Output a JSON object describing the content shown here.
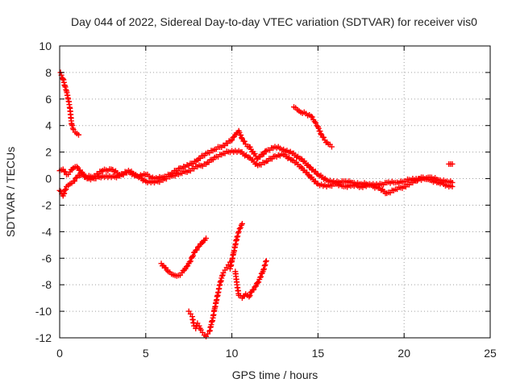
{
  "chart_data": {
    "type": "scatter",
    "title": "Day 044 of 2022, Sidereal Day-to-day VTEC variation (SDTVAR) for receiver vis0",
    "xlabel": "GPS time / hours",
    "ylabel": "SDTVAR / TECUs",
    "xlim": [
      0,
      25
    ],
    "ylim": [
      -12,
      10
    ],
    "xticks": [
      "0",
      "5",
      "10",
      "15",
      "20",
      "25"
    ],
    "yticks": [
      "10",
      "8",
      "6",
      "4",
      "2",
      "0",
      "-2",
      "-4",
      "-6",
      "-8",
      "-10",
      "-12"
    ],
    "grid": true,
    "marker": "+",
    "color": "#ff0000",
    "series": [
      {
        "x": [
          0.0,
          0.2,
          0.4,
          0.6,
          0.8,
          1.0,
          1.5,
          2.0,
          2.5,
          3.0,
          3.5,
          4.0,
          4.5,
          5.0,
          5.5,
          6.0,
          6.5,
          7.0,
          7.5,
          8.0,
          8.5,
          9.0,
          9.5,
          10.0,
          10.2,
          10.4,
          10.6,
          10.8,
          11.0,
          11.5,
          12.0,
          12.5,
          13.0,
          13.5,
          14.0,
          14.5,
          15.0,
          15.5,
          16.0,
          16.5,
          17.0,
          17.5,
          18.0,
          18.5,
          19.0,
          19.5,
          20.0,
          20.5,
          21.0,
          21.5,
          22.0,
          22.5,
          22.8
        ],
        "y": [
          0.6,
          0.7,
          0.3,
          0.5,
          0.8,
          0.9,
          0.1,
          0.2,
          0.6,
          0.7,
          0.3,
          0.6,
          0.2,
          0.3,
          0.0,
          0.1,
          0.4,
          0.8,
          1.0,
          1.4,
          1.9,
          2.2,
          2.5,
          2.9,
          3.3,
          3.6,
          3.0,
          2.6,
          2.4,
          1.5,
          2.1,
          2.4,
          2.2,
          1.9,
          1.5,
          0.9,
          0.3,
          -0.1,
          -0.3,
          -0.2,
          -0.3,
          -0.4,
          -0.4,
          -0.5,
          -0.3,
          -0.3,
          -0.2,
          0.0,
          -0.1,
          0.1,
          -0.1,
          -0.2,
          -0.3
        ]
      },
      {
        "x": [
          0.0,
          0.2,
          0.4,
          0.6,
          0.8,
          1.0,
          1.3,
          1.6,
          2.0,
          2.5,
          3.0,
          3.5,
          4.0,
          4.5,
          5.0,
          5.5,
          6.0,
          6.5,
          7.0,
          7.5,
          8.0,
          8.5,
          9.0,
          9.5,
          10.0,
          10.5,
          11.0,
          11.5,
          12.0,
          12.5,
          13.0,
          13.5,
          14.0,
          14.5,
          15.0,
          15.5,
          16.0,
          16.5,
          17.0,
          17.5,
          18.0,
          18.5,
          19.0,
          19.5,
          20.0,
          20.5,
          21.0,
          21.5,
          22.0,
          22.5,
          22.8
        ],
        "y": [
          -0.9,
          -1.3,
          -0.6,
          -0.4,
          -0.2,
          0.1,
          0.4,
          0.0,
          0.0,
          0.2,
          0.1,
          0.2,
          0.5,
          0.2,
          -0.2,
          -0.3,
          -0.1,
          0.2,
          0.4,
          0.6,
          0.9,
          1.1,
          1.6,
          1.9,
          2.1,
          2.0,
          1.6,
          1.0,
          1.3,
          1.7,
          1.8,
          1.4,
          0.9,
          0.2,
          -0.4,
          -0.6,
          -0.4,
          -0.6,
          -0.5,
          -0.6,
          -0.5,
          -0.7,
          -1.1,
          -0.8,
          -0.6,
          -0.3,
          0.1,
          -0.1,
          -0.3,
          -0.5,
          -0.6
        ]
      },
      {
        "x": [
          0.05,
          0.1,
          0.2,
          0.3,
          0.4,
          0.5,
          0.6,
          0.65,
          0.7,
          0.8,
          0.9,
          1.0,
          1.1
        ],
        "y": [
          8.0,
          7.8,
          7.5,
          7.0,
          6.6,
          6.0,
          5.3,
          4.6,
          4.1,
          3.7,
          3.5,
          3.4,
          3.3
        ]
      },
      {
        "x": [
          13.6,
          13.8,
          14.0,
          14.3,
          14.6,
          14.8,
          15.0,
          15.2,
          15.4,
          15.6,
          15.8
        ],
        "y": [
          5.4,
          5.2,
          5.0,
          4.9,
          4.7,
          4.3,
          3.9,
          3.3,
          2.9,
          2.6,
          2.4
        ]
      },
      {
        "x": [
          5.9,
          6.1,
          6.3,
          6.5,
          6.7,
          6.9,
          7.1,
          7.3,
          7.5,
          7.7,
          7.9,
          8.1,
          8.3,
          8.5
        ],
        "y": [
          -6.4,
          -6.7,
          -7.0,
          -7.2,
          -7.3,
          -7.3,
          -7.1,
          -6.8,
          -6.4,
          -5.9,
          -5.4,
          -5.1,
          -4.8,
          -4.5
        ]
      },
      {
        "x": [
          7.5,
          7.6,
          7.7,
          7.8,
          7.9,
          8.0,
          8.1,
          8.2,
          8.3,
          8.4,
          8.5,
          8.6,
          8.7,
          8.8,
          8.9,
          9.0,
          9.1,
          9.2,
          9.3,
          9.4,
          9.5,
          9.6,
          9.7,
          9.8,
          9.9,
          10.0
        ],
        "y": [
          -10.0,
          -10.2,
          -10.4,
          -11.1,
          -11.3,
          -10.9,
          -11.1,
          -11.4,
          -11.6,
          -11.8,
          -11.9,
          -11.7,
          -11.5,
          -11.0,
          -10.5,
          -9.8,
          -9.2,
          -8.6,
          -8.0,
          -7.5,
          -7.1,
          -6.9,
          -6.7,
          -6.5,
          -6.3,
          -6.2
        ]
      },
      {
        "x": [
          9.9,
          10.0,
          10.1,
          10.2,
          10.3,
          10.4,
          10.5,
          10.6
        ],
        "y": [
          -6.8,
          -6.2,
          -5.6,
          -5.0,
          -4.4,
          -4.0,
          -3.7,
          -3.4
        ]
      },
      {
        "x": [
          10.2,
          10.3,
          10.4,
          10.6,
          10.8,
          11.0,
          11.2,
          11.4,
          11.6,
          11.8,
          12.0
        ],
        "y": [
          -7.0,
          -8.0,
          -8.8,
          -9.0,
          -8.7,
          -8.9,
          -8.4,
          -8.1,
          -7.6,
          -7.0,
          -6.2
        ]
      },
      {
        "x": [
          22.6,
          22.7,
          22.8
        ],
        "y": [
          1.1,
          1.1,
          1.1
        ]
      }
    ]
  }
}
